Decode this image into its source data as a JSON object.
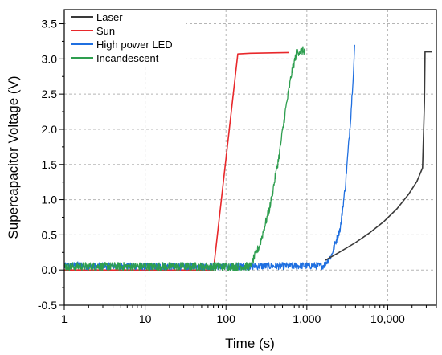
{
  "chart_data": {
    "type": "line",
    "xlabel": "Time (s)",
    "ylabel": "Supercapacitor Voltage (V)",
    "xscale": "log",
    "xlim": [
      1,
      40000
    ],
    "ylim": [
      -0.5,
      3.7
    ],
    "xticks": [
      {
        "value": 1,
        "label": "1"
      },
      {
        "value": 10,
        "label": "10"
      },
      {
        "value": 100,
        "label": "100"
      },
      {
        "value": 1000,
        "label": "1,000"
      },
      {
        "value": 10000,
        "label": "10,000"
      }
    ],
    "yticks": [
      {
        "value": -0.5,
        "label": "-0.5"
      },
      {
        "value": 0.0,
        "label": "0.0"
      },
      {
        "value": 0.5,
        "label": "0.5"
      },
      {
        "value": 1.0,
        "label": "1.0"
      },
      {
        "value": 1.5,
        "label": "1.5"
      },
      {
        "value": 2.0,
        "label": "2.0"
      },
      {
        "value": 2.5,
        "label": "2.5"
      },
      {
        "value": 3.0,
        "label": "3.0"
      },
      {
        "value": 3.5,
        "label": "3.5"
      }
    ],
    "grid": true,
    "legend_position": "top-left",
    "series": [
      {
        "name": "Laser",
        "color": "#3a3a3a",
        "noise": 0.0,
        "points": [
          [
            1700,
            0.14
          ],
          [
            2500,
            0.25
          ],
          [
            4000,
            0.39
          ],
          [
            6000,
            0.53
          ],
          [
            9000,
            0.69
          ],
          [
            13000,
            0.87
          ],
          [
            18000,
            1.07
          ],
          [
            23000,
            1.26
          ],
          [
            27000,
            1.45
          ],
          [
            28500,
            2.4
          ],
          [
            29000,
            3.1
          ],
          [
            35000,
            3.1
          ]
        ]
      },
      {
        "name": "Sun",
        "color": "#e8282b",
        "noise": 0.0,
        "points": [
          [
            1,
            0.0
          ],
          [
            70,
            0.0
          ],
          [
            140,
            3.07
          ],
          [
            200,
            3.08
          ],
          [
            600,
            3.09
          ]
        ]
      },
      {
        "name": "High power LED",
        "color": "#1f6fe0",
        "noise": 0.05,
        "points": [
          [
            1,
            0.05
          ],
          [
            1.2,
            0.06
          ],
          [
            1.6,
            0.07
          ],
          [
            2.2,
            0.04
          ],
          [
            3,
            0.06
          ],
          [
            10,
            0.05
          ],
          [
            100,
            0.05
          ],
          [
            1000,
            0.06
          ],
          [
            1600,
            0.06
          ],
          [
            2000,
            0.2
          ],
          [
            2600,
            0.6
          ],
          [
            3000,
            1.2
          ],
          [
            3500,
            2.2
          ],
          [
            3800,
            2.9
          ],
          [
            3900,
            3.2
          ]
        ]
      },
      {
        "name": "Incandescent",
        "color": "#2e9e4f",
        "noise": 0.06,
        "points": [
          [
            1,
            0.05
          ],
          [
            10,
            0.05
          ],
          [
            100,
            0.05
          ],
          [
            200,
            0.05
          ],
          [
            260,
            0.35
          ],
          [
            350,
            0.9
          ],
          [
            450,
            1.6
          ],
          [
            550,
            2.3
          ],
          [
            650,
            2.8
          ],
          [
            750,
            3.1
          ],
          [
            950,
            3.12
          ]
        ]
      }
    ]
  }
}
